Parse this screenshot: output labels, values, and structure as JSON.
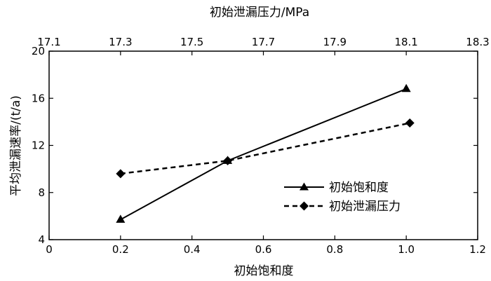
{
  "chart_data": {
    "type": "line",
    "bottom_axis": {
      "label": "初始饱和度",
      "range": [
        0,
        1.2
      ],
      "ticks": [
        "0",
        "0.2",
        "0.4",
        "0.6",
        "0.8",
        "1.0",
        "1.2"
      ]
    },
    "top_axis": {
      "label": "初始泄漏压力/MPa",
      "range": [
        17.1,
        18.3
      ],
      "ticks": [
        "17.1",
        "17.3",
        "17.5",
        "17.7",
        "17.9",
        "18.1",
        "18.3"
      ]
    },
    "y_axis": {
      "label": "平均泄漏速率/(t/a)",
      "range": [
        4,
        20
      ],
      "ticks": [
        "4",
        "8",
        "12",
        "16",
        "20"
      ]
    },
    "grid": false,
    "legend_position": "center-right",
    "series": [
      {
        "name": "初始饱和度",
        "axis": "bottom",
        "marker": "triangle",
        "line": "solid",
        "color": "#000000",
        "x": [
          0.2,
          0.5,
          1.0
        ],
        "y": [
          5.7,
          10.7,
          16.8
        ]
      },
      {
        "name": "初始泄漏压力",
        "axis": "top",
        "marker": "diamond",
        "line": "dashed",
        "color": "#000000",
        "x": [
          17.3,
          17.6,
          18.11
        ],
        "y": [
          9.6,
          10.7,
          13.9
        ]
      }
    ]
  }
}
